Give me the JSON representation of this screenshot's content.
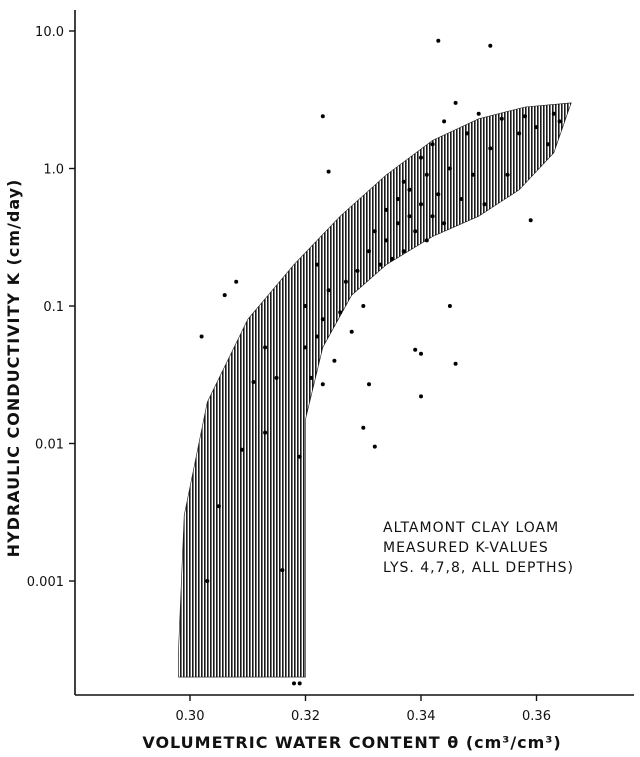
{
  "chart_data": {
    "type": "scatter",
    "title": "",
    "xlabel": "VOLUMETRIC WATER CONTENT θ (cm³/cm³)",
    "ylabel": "HYDRAULIC CONDUCTIVITY K (cm/day)",
    "x_scale": "linear",
    "y_scale": "log",
    "xlim": [
      0.28,
      0.38
    ],
    "ylim": [
      7e-05,
      15
    ],
    "x_ticks": [
      "0.30",
      "0.32",
      "0.34",
      "0.36"
    ],
    "y_ticks": [
      "0.001",
      "0.01",
      "0.1",
      "1.0",
      "10.0"
    ],
    "grid": false,
    "annotation": [
      "ALTAMONT CLAY LOAM",
      "MEASURED K-VALUES",
      "LYS. 4,7,8, ALL DEPTHS)"
    ],
    "band": {
      "name": "",
      "color": "#222222",
      "upper": [
        [
          0.298,
          0.0003
        ],
        [
          0.299,
          0.003
        ],
        [
          0.303,
          0.02
        ],
        [
          0.31,
          0.08
        ],
        [
          0.318,
          0.2
        ],
        [
          0.326,
          0.45
        ],
        [
          0.334,
          0.9
        ],
        [
          0.342,
          1.6
        ],
        [
          0.35,
          2.3
        ],
        [
          0.358,
          2.8
        ],
        [
          0.366,
          3.0
        ]
      ],
      "lower": [
        [
          0.366,
          3.0
        ],
        [
          0.363,
          1.3
        ],
        [
          0.357,
          0.7
        ],
        [
          0.35,
          0.45
        ],
        [
          0.342,
          0.32
        ],
        [
          0.334,
          0.2
        ],
        [
          0.328,
          0.12
        ],
        [
          0.323,
          0.05
        ],
        [
          0.32,
          0.015
        ],
        [
          0.32,
          0.002
        ],
        [
          0.32,
          0.0002
        ],
        [
          0.298,
          0.0002
        ]
      ]
    },
    "series": [
      {
        "name": "",
        "points": [
          [
            0.302,
            0.06
          ],
          [
            0.303,
            0.001
          ],
          [
            0.305,
            0.0035
          ],
          [
            0.306,
            0.12
          ],
          [
            0.309,
            0.009
          ],
          [
            0.311,
            0.028
          ],
          [
            0.313,
            0.05
          ],
          [
            0.315,
            0.03
          ],
          [
            0.316,
            0.0012
          ],
          [
            0.318,
            0.00018
          ],
          [
            0.319,
            0.00018
          ],
          [
            0.319,
            0.008
          ],
          [
            0.32,
            0.05
          ],
          [
            0.32,
            0.1
          ],
          [
            0.321,
            0.03
          ],
          [
            0.322,
            0.06
          ],
          [
            0.322,
            0.2
          ],
          [
            0.323,
            0.08
          ],
          [
            0.323,
            0.027
          ],
          [
            0.324,
            0.13
          ],
          [
            0.324,
            0.95
          ],
          [
            0.325,
            0.04
          ],
          [
            0.326,
            0.09
          ],
          [
            0.327,
            0.15
          ],
          [
            0.328,
            0.065
          ],
          [
            0.329,
            0.18
          ],
          [
            0.33,
            0.1
          ],
          [
            0.331,
            0.25
          ],
          [
            0.331,
            0.027
          ],
          [
            0.332,
            0.0095
          ],
          [
            0.332,
            0.35
          ],
          [
            0.333,
            0.2
          ],
          [
            0.334,
            0.5
          ],
          [
            0.334,
            0.3
          ],
          [
            0.335,
            0.22
          ],
          [
            0.336,
            0.6
          ],
          [
            0.336,
            0.4
          ],
          [
            0.337,
            0.8
          ],
          [
            0.337,
            0.25
          ],
          [
            0.338,
            0.45
          ],
          [
            0.338,
            0.7
          ],
          [
            0.339,
            0.35
          ],
          [
            0.339,
            0.048
          ],
          [
            0.34,
            0.55
          ],
          [
            0.34,
            1.2
          ],
          [
            0.34,
            0.045
          ],
          [
            0.341,
            0.3
          ],
          [
            0.341,
            0.9
          ],
          [
            0.342,
            1.5
          ],
          [
            0.342,
            0.45
          ],
          [
            0.343,
            8.5
          ],
          [
            0.343,
            0.65
          ],
          [
            0.344,
            2.2
          ],
          [
            0.344,
            0.4
          ],
          [
            0.345,
            1.0
          ],
          [
            0.345,
            0.1
          ],
          [
            0.346,
            0.038
          ],
          [
            0.346,
            3.0
          ],
          [
            0.347,
            0.6
          ],
          [
            0.348,
            1.8
          ],
          [
            0.349,
            0.9
          ],
          [
            0.35,
            2.5
          ],
          [
            0.351,
            0.55
          ],
          [
            0.352,
            7.8
          ],
          [
            0.352,
            1.4
          ],
          [
            0.354,
            2.3
          ],
          [
            0.355,
            0.9
          ],
          [
            0.357,
            1.8
          ],
          [
            0.358,
            2.4
          ],
          [
            0.359,
            0.42
          ],
          [
            0.36,
            2.0
          ],
          [
            0.362,
            1.5
          ],
          [
            0.363,
            2.5
          ],
          [
            0.364,
            2.2
          ],
          [
            0.323,
            2.4
          ],
          [
            0.308,
            0.15
          ],
          [
            0.313,
            0.012
          ],
          [
            0.34,
            0.022
          ],
          [
            0.33,
            0.013
          ]
        ]
      }
    ]
  }
}
